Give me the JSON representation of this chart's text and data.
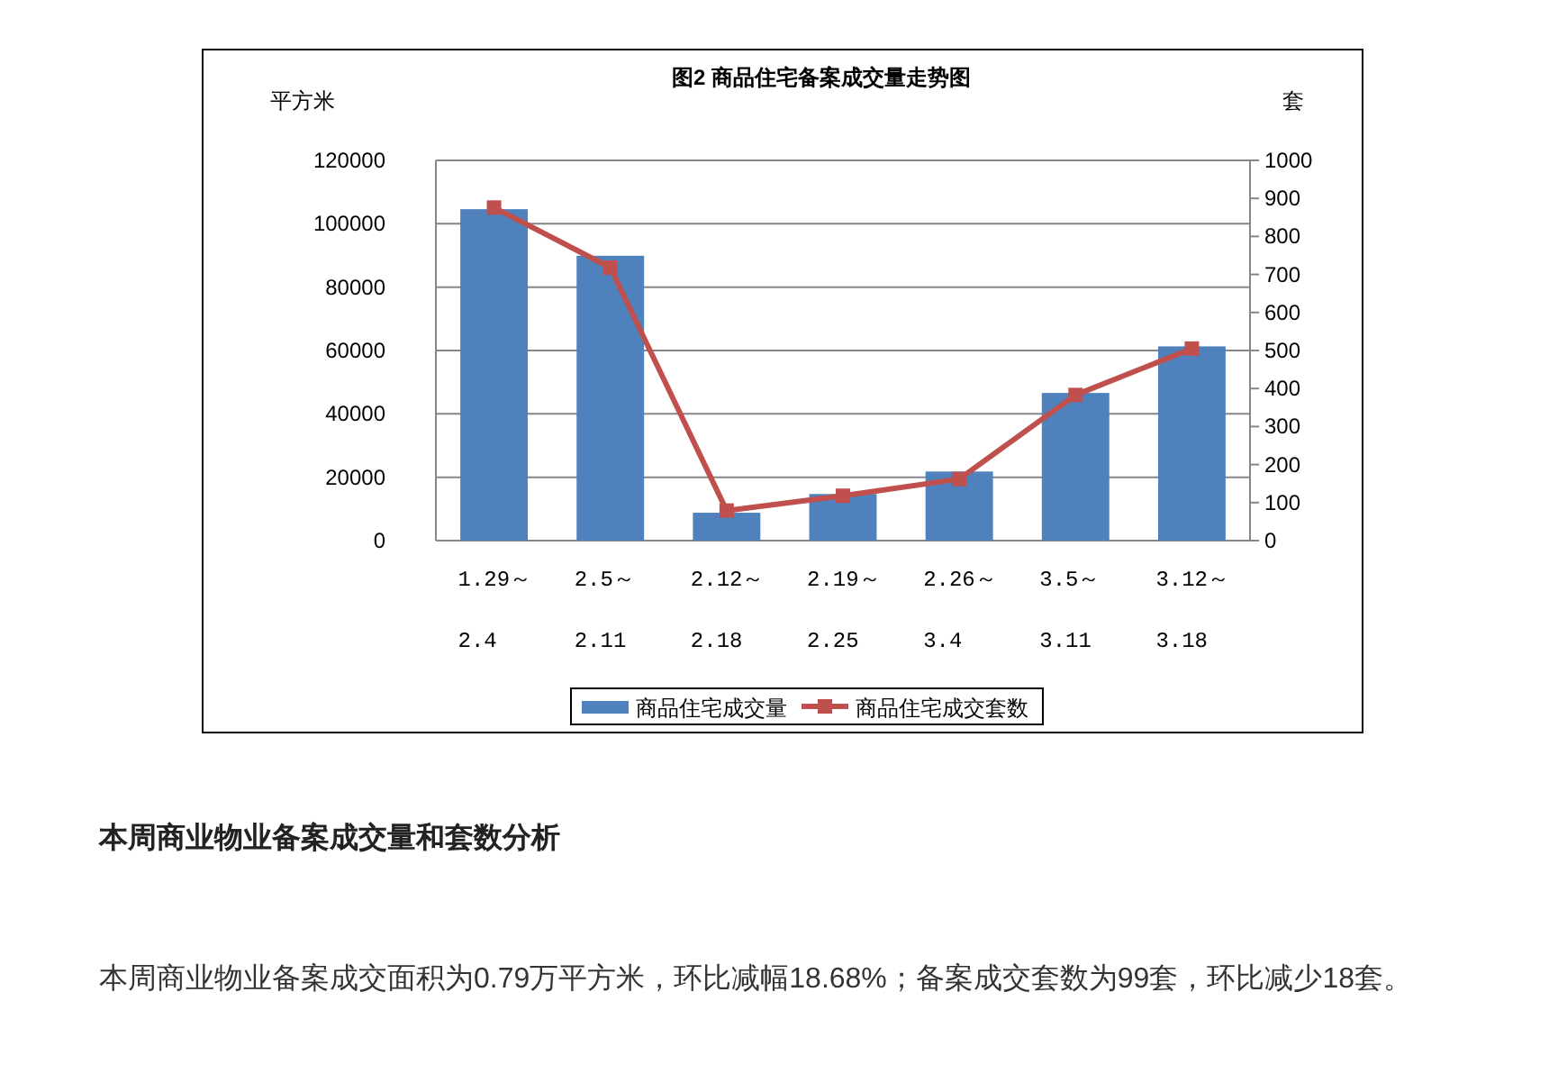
{
  "chart_data": {
    "type": "bar",
    "title": "图2 商品住宅备案成交量走势图",
    "ylabel": "平方米",
    "y2label": "套",
    "categories": [
      "1.29～\n2.4",
      "2.5～\n2.11",
      "2.12～\n2.18",
      "2.19～\n2.25",
      "2.26～\n3.4",
      "3.5～\n3.11",
      "3.12～\n3.18"
    ],
    "series": [
      {
        "name": "商品住宅成交量",
        "color": "#4f81bd",
        "values": [
          104600,
          89900,
          8800,
          14700,
          21800,
          46600,
          61300
        ]
      },
      {
        "name": "商品住宅成交套数",
        "type": "line",
        "axis": "y2",
        "marker": "square",
        "color": "#c0504d",
        "values": [
          876,
          718,
          79,
          118,
          162,
          383,
          505
        ]
      }
    ],
    "ylim": [
      0,
      120000
    ],
    "yticks": [
      0,
      20000,
      40000,
      60000,
      80000,
      100000,
      120000
    ],
    "y2lim": [
      0,
      1000
    ],
    "y2ticks": [
      0,
      100,
      200,
      300,
      400,
      500,
      600,
      700,
      800,
      900,
      1000
    ],
    "grid": "y",
    "legend": "bottom",
    "annotations": [
      "本周商业物业备案成交量和套数分析",
      "本周商业物业备案成交面积为0.79万平方米，环比减幅18.68%；备案成交套数为99套，环比减少18套。"
    ]
  }
}
